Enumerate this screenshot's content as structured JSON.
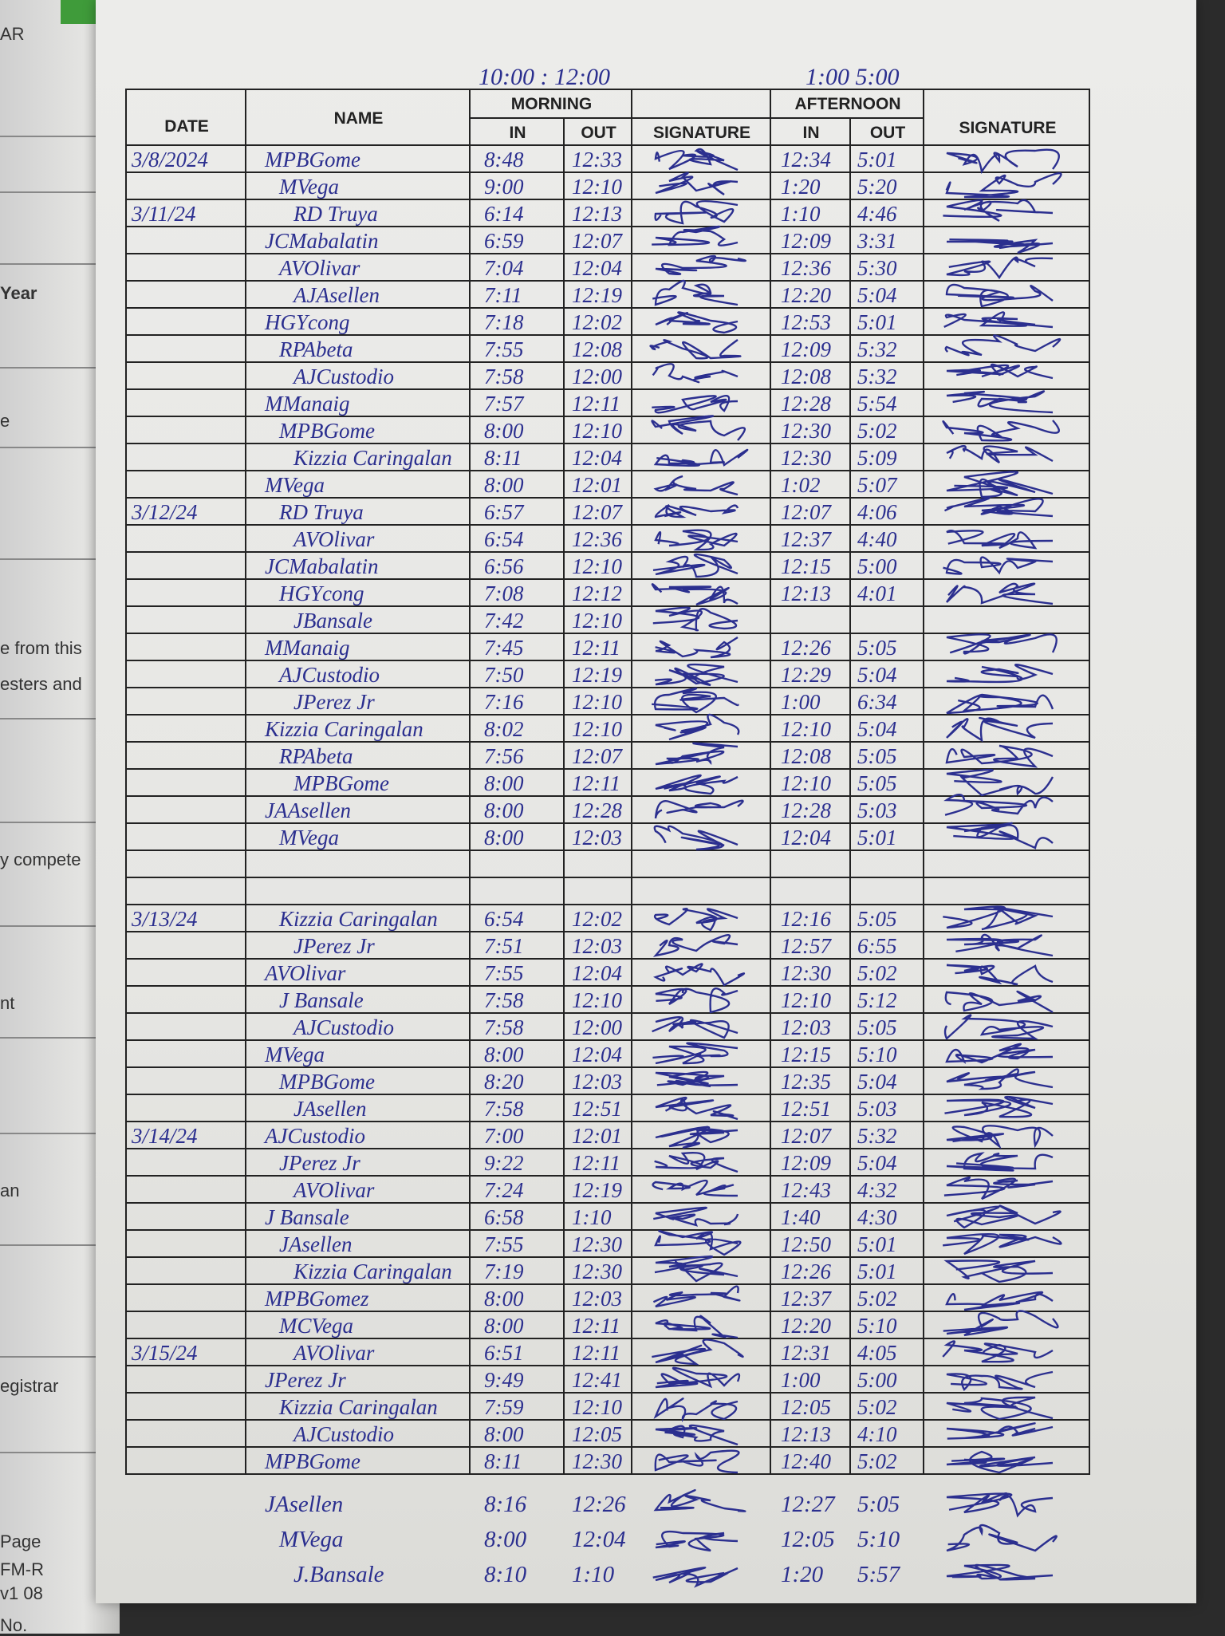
{
  "left_page_fragments": [
    "AR",
    "Year",
    "e",
    "e from this",
    "esters and",
    "y compete",
    "nt",
    "an",
    "egistrar",
    "Page",
    "FM-R",
    "v1 08",
    "No."
  ],
  "top_notes": {
    "morning_hours": "10:00 : 12:00",
    "afternoon_hours": "1:00   5:00"
  },
  "header": {
    "date": "DATE",
    "name": "NAME",
    "morning": "MORNING",
    "afternoon": "AFTERNOON",
    "in": "IN",
    "out": "OUT",
    "signature": "SIGNATURE"
  },
  "colors": {
    "ink": "#2b2f8f",
    "paper": "#e9e9e7",
    "rule": "#222222"
  },
  "rows": [
    {
      "date": "3/8/2024",
      "name": "MPBGome",
      "am_in": "8:48",
      "am_out": "12:33",
      "pm_in": "12:34",
      "pm_out": "5:01"
    },
    {
      "date": "",
      "name": "MVega",
      "am_in": "9:00",
      "am_out": "12:10",
      "pm_in": "1:20",
      "pm_out": "5:20"
    },
    {
      "date": "3/11/24",
      "name": "RD Truya",
      "am_in": "6:14",
      "am_out": "12:13",
      "pm_in": "1:10",
      "pm_out": "4:46"
    },
    {
      "date": "",
      "name": "JCMabalatin",
      "am_in": "6:59",
      "am_out": "12:07",
      "pm_in": "12:09",
      "pm_out": "3:31"
    },
    {
      "date": "",
      "name": "AVOlivar",
      "am_in": "7:04",
      "am_out": "12:04",
      "pm_in": "12:36",
      "pm_out": "5:30"
    },
    {
      "date": "",
      "name": "AJAsellen",
      "am_in": "7:11",
      "am_out": "12:19",
      "pm_in": "12:20",
      "pm_out": "5:04"
    },
    {
      "date": "",
      "name": "HGYcong",
      "am_in": "7:18",
      "am_out": "12:02",
      "pm_in": "12:53",
      "pm_out": "5:01"
    },
    {
      "date": "",
      "name": "RPAbeta",
      "am_in": "7:55",
      "am_out": "12:08",
      "pm_in": "12:09",
      "pm_out": "5:32"
    },
    {
      "date": "",
      "name": "AJCustodio",
      "am_in": "7:58",
      "am_out": "12:00",
      "pm_in": "12:08",
      "pm_out": "5:32"
    },
    {
      "date": "",
      "name": "MManaig",
      "am_in": "7:57",
      "am_out": "12:11",
      "pm_in": "12:28",
      "pm_out": "5:54"
    },
    {
      "date": "",
      "name": "MPBGome",
      "am_in": "8:00",
      "am_out": "12:10",
      "pm_in": "12:30",
      "pm_out": "5:02"
    },
    {
      "date": "",
      "name": "Kizzia Caringalan",
      "am_in": "8:11",
      "am_out": "12:04",
      "pm_in": "12:30",
      "pm_out": "5:09"
    },
    {
      "date": "",
      "name": "MVega",
      "am_in": "8:00",
      "am_out": "12:01",
      "pm_in": "1:02",
      "pm_out": "5:07"
    },
    {
      "date": "3/12/24",
      "name": "RD Truya",
      "am_in": "6:57",
      "am_out": "12:07",
      "pm_in": "12:07",
      "pm_out": "4:06"
    },
    {
      "date": "",
      "name": "AVOlivar",
      "am_in": "6:54",
      "am_out": "12:36",
      "pm_in": "12:37",
      "pm_out": "4:40"
    },
    {
      "date": "",
      "name": "JCMabalatin",
      "am_in": "6:56",
      "am_out": "12:10",
      "pm_in": "12:15",
      "pm_out": "5:00"
    },
    {
      "date": "",
      "name": "HGYcong",
      "am_in": "7:08",
      "am_out": "12:12",
      "pm_in": "12:13",
      "pm_out": "4:01"
    },
    {
      "date": "",
      "name": "JBansale",
      "am_in": "7:42",
      "am_out": "12:10",
      "pm_in": "",
      "pm_out": ""
    },
    {
      "date": "",
      "name": "MManaig",
      "am_in": "7:45",
      "am_out": "12:11",
      "pm_in": "12:26",
      "pm_out": "5:05"
    },
    {
      "date": "",
      "name": "AJCustodio",
      "am_in": "7:50",
      "am_out": "12:19",
      "pm_in": "12:29",
      "pm_out": "5:04"
    },
    {
      "date": "",
      "name": "JPerez Jr",
      "am_in": "7:16",
      "am_out": "12:10",
      "pm_in": "1:00",
      "pm_out": "6:34"
    },
    {
      "date": "",
      "name": "Kizzia Caringalan",
      "am_in": "8:02",
      "am_out": "12:10",
      "pm_in": "12:10",
      "pm_out": "5:04"
    },
    {
      "date": "",
      "name": "RPAbeta",
      "am_in": "7:56",
      "am_out": "12:07",
      "pm_in": "12:08",
      "pm_out": "5:05"
    },
    {
      "date": "",
      "name": "MPBGome",
      "am_in": "8:00",
      "am_out": "12:11",
      "pm_in": "12:10",
      "pm_out": "5:05"
    },
    {
      "date": "",
      "name": "JAAsellen",
      "am_in": "8:00",
      "am_out": "12:28",
      "pm_in": "12:28",
      "pm_out": "5:03"
    },
    {
      "date": "",
      "name": "MVega",
      "am_in": "8:00",
      "am_out": "12:03",
      "pm_in": "12:04",
      "pm_out": "5:01"
    },
    {
      "date": "",
      "name": "",
      "am_in": "",
      "am_out": "",
      "pm_in": "",
      "pm_out": ""
    },
    {
      "date": "",
      "name": "",
      "am_in": "",
      "am_out": "",
      "pm_in": "",
      "pm_out": ""
    },
    {
      "date": "3/13/24",
      "name": "Kizzia Caringalan",
      "am_in": "6:54",
      "am_out": "12:02",
      "pm_in": "12:16",
      "pm_out": "5:05"
    },
    {
      "date": "",
      "name": "JPerez Jr",
      "am_in": "7:51",
      "am_out": "12:03",
      "pm_in": "12:57",
      "pm_out": "6:55"
    },
    {
      "date": "",
      "name": "AVOlivar",
      "am_in": "7:55",
      "am_out": "12:04",
      "pm_in": "12:30",
      "pm_out": "5:02"
    },
    {
      "date": "",
      "name": "J Bansale",
      "am_in": "7:58",
      "am_out": "12:10",
      "pm_in": "12:10",
      "pm_out": "5:12"
    },
    {
      "date": "",
      "name": "AJCustodio",
      "am_in": "7:58",
      "am_out": "12:00",
      "pm_in": "12:03",
      "pm_out": "5:05"
    },
    {
      "date": "",
      "name": "MVega",
      "am_in": "8:00",
      "am_out": "12:04",
      "pm_in": "12:15",
      "pm_out": "5:10"
    },
    {
      "date": "",
      "name": "MPBGome",
      "am_in": "8:20",
      "am_out": "12:03",
      "pm_in": "12:35",
      "pm_out": "5:04"
    },
    {
      "date": "",
      "name": "JAsellen",
      "am_in": "7:58",
      "am_out": "12:51",
      "pm_in": "12:51",
      "pm_out": "5:03"
    },
    {
      "date": "3/14/24",
      "name": "AJCustodio",
      "am_in": "7:00",
      "am_out": "12:01",
      "pm_in": "12:07",
      "pm_out": "5:32"
    },
    {
      "date": "",
      "name": "JPerez Jr",
      "am_in": "9:22",
      "am_out": "12:11",
      "pm_in": "12:09",
      "pm_out": "5:04"
    },
    {
      "date": "",
      "name": "AVOlivar",
      "am_in": "7:24",
      "am_out": "12:19",
      "pm_in": "12:43",
      "pm_out": "4:32"
    },
    {
      "date": "",
      "name": "J Bansale",
      "am_in": "6:58",
      "am_out": "1:10",
      "pm_in": "1:40",
      "pm_out": "4:30"
    },
    {
      "date": "",
      "name": "JAsellen",
      "am_in": "7:55",
      "am_out": "12:30",
      "pm_in": "12:50",
      "pm_out": "5:01"
    },
    {
      "date": "",
      "name": "Kizzia Caringalan",
      "am_in": "7:19",
      "am_out": "12:30",
      "pm_in": "12:26",
      "pm_out": "5:01"
    },
    {
      "date": "",
      "name": "MPBGomez",
      "am_in": "8:00",
      "am_out": "12:03",
      "pm_in": "12:37",
      "pm_out": "5:02"
    },
    {
      "date": "",
      "name": "MCVega",
      "am_in": "8:00",
      "am_out": "12:11",
      "pm_in": "12:20",
      "pm_out": "5:10"
    },
    {
      "date": "3/15/24",
      "name": "AVOlivar",
      "am_in": "6:51",
      "am_out": "12:11",
      "pm_in": "12:31",
      "pm_out": "4:05"
    },
    {
      "date": "",
      "name": "JPerez Jr",
      "am_in": "9:49",
      "am_out": "12:41",
      "pm_in": "1:00",
      "pm_out": "5:00"
    },
    {
      "date": "",
      "name": "Kizzia Caringalan",
      "am_in": "7:59",
      "am_out": "12:10",
      "pm_in": "12:05",
      "pm_out": "5:02"
    },
    {
      "date": "",
      "name": "AJCustodio",
      "am_in": "8:00",
      "am_out": "12:05",
      "pm_in": "12:13",
      "pm_out": "4:10"
    },
    {
      "date": "",
      "name": "MPBGome",
      "am_in": "8:11",
      "am_out": "12:30",
      "pm_in": "12:40",
      "pm_out": "5:02"
    }
  ],
  "rows_below_table": [
    {
      "name": "JAsellen",
      "am_in": "8:16",
      "am_out": "12:26",
      "pm_in": "12:27",
      "pm_out": "5:05"
    },
    {
      "name": "MVega",
      "am_in": "8:00",
      "am_out": "12:04",
      "pm_in": "12:05",
      "pm_out": "5:10"
    },
    {
      "name": "J.Bansale",
      "am_in": "8:10",
      "am_out": "1:10",
      "pm_in": "1:20",
      "pm_out": "5:57"
    }
  ]
}
